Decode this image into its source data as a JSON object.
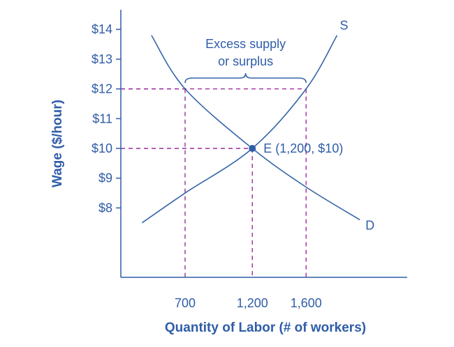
{
  "chart_data": {
    "type": "line",
    "xlabel": "Quantity of Labor (# of workers)",
    "ylabel": "Wage ($/hour)",
    "x_ticks": [
      {
        "value": 700,
        "label": "700"
      },
      {
        "value": 1200,
        "label": "1,200"
      },
      {
        "value": 1600,
        "label": "1,600"
      }
    ],
    "y_ticks": [
      {
        "value": 8,
        "label": "$8"
      },
      {
        "value": 9,
        "label": "$9"
      },
      {
        "value": 10,
        "label": "$10"
      },
      {
        "value": 11,
        "label": "$11"
      },
      {
        "value": 12,
        "label": "$12"
      },
      {
        "value": 13,
        "label": "$13"
      },
      {
        "value": 14,
        "label": "$14"
      }
    ],
    "series": [
      {
        "name": "S",
        "x": [
          380,
          700,
          1200,
          1600,
          1830
        ],
        "y": [
          7.5,
          8.5,
          10,
          12,
          13.8
        ]
      },
      {
        "name": "D",
        "x": [
          450,
          700,
          1200,
          1600,
          2000
        ],
        "y": [
          13.8,
          12,
          10,
          8.7,
          7.6
        ]
      }
    ],
    "equilibrium": {
      "x": 1200,
      "y": 10,
      "label": "E (1,200, $10)"
    },
    "guides": [
      {
        "x": 700,
        "y": 12
      },
      {
        "x": 1600,
        "y": 12
      },
      {
        "x": 1200,
        "y": 10
      }
    ],
    "annotation": {
      "lines": [
        "Excess supply",
        "or surplus"
      ],
      "x_from": 700,
      "x_to": 1600
    },
    "grid": false,
    "legend": "none"
  }
}
